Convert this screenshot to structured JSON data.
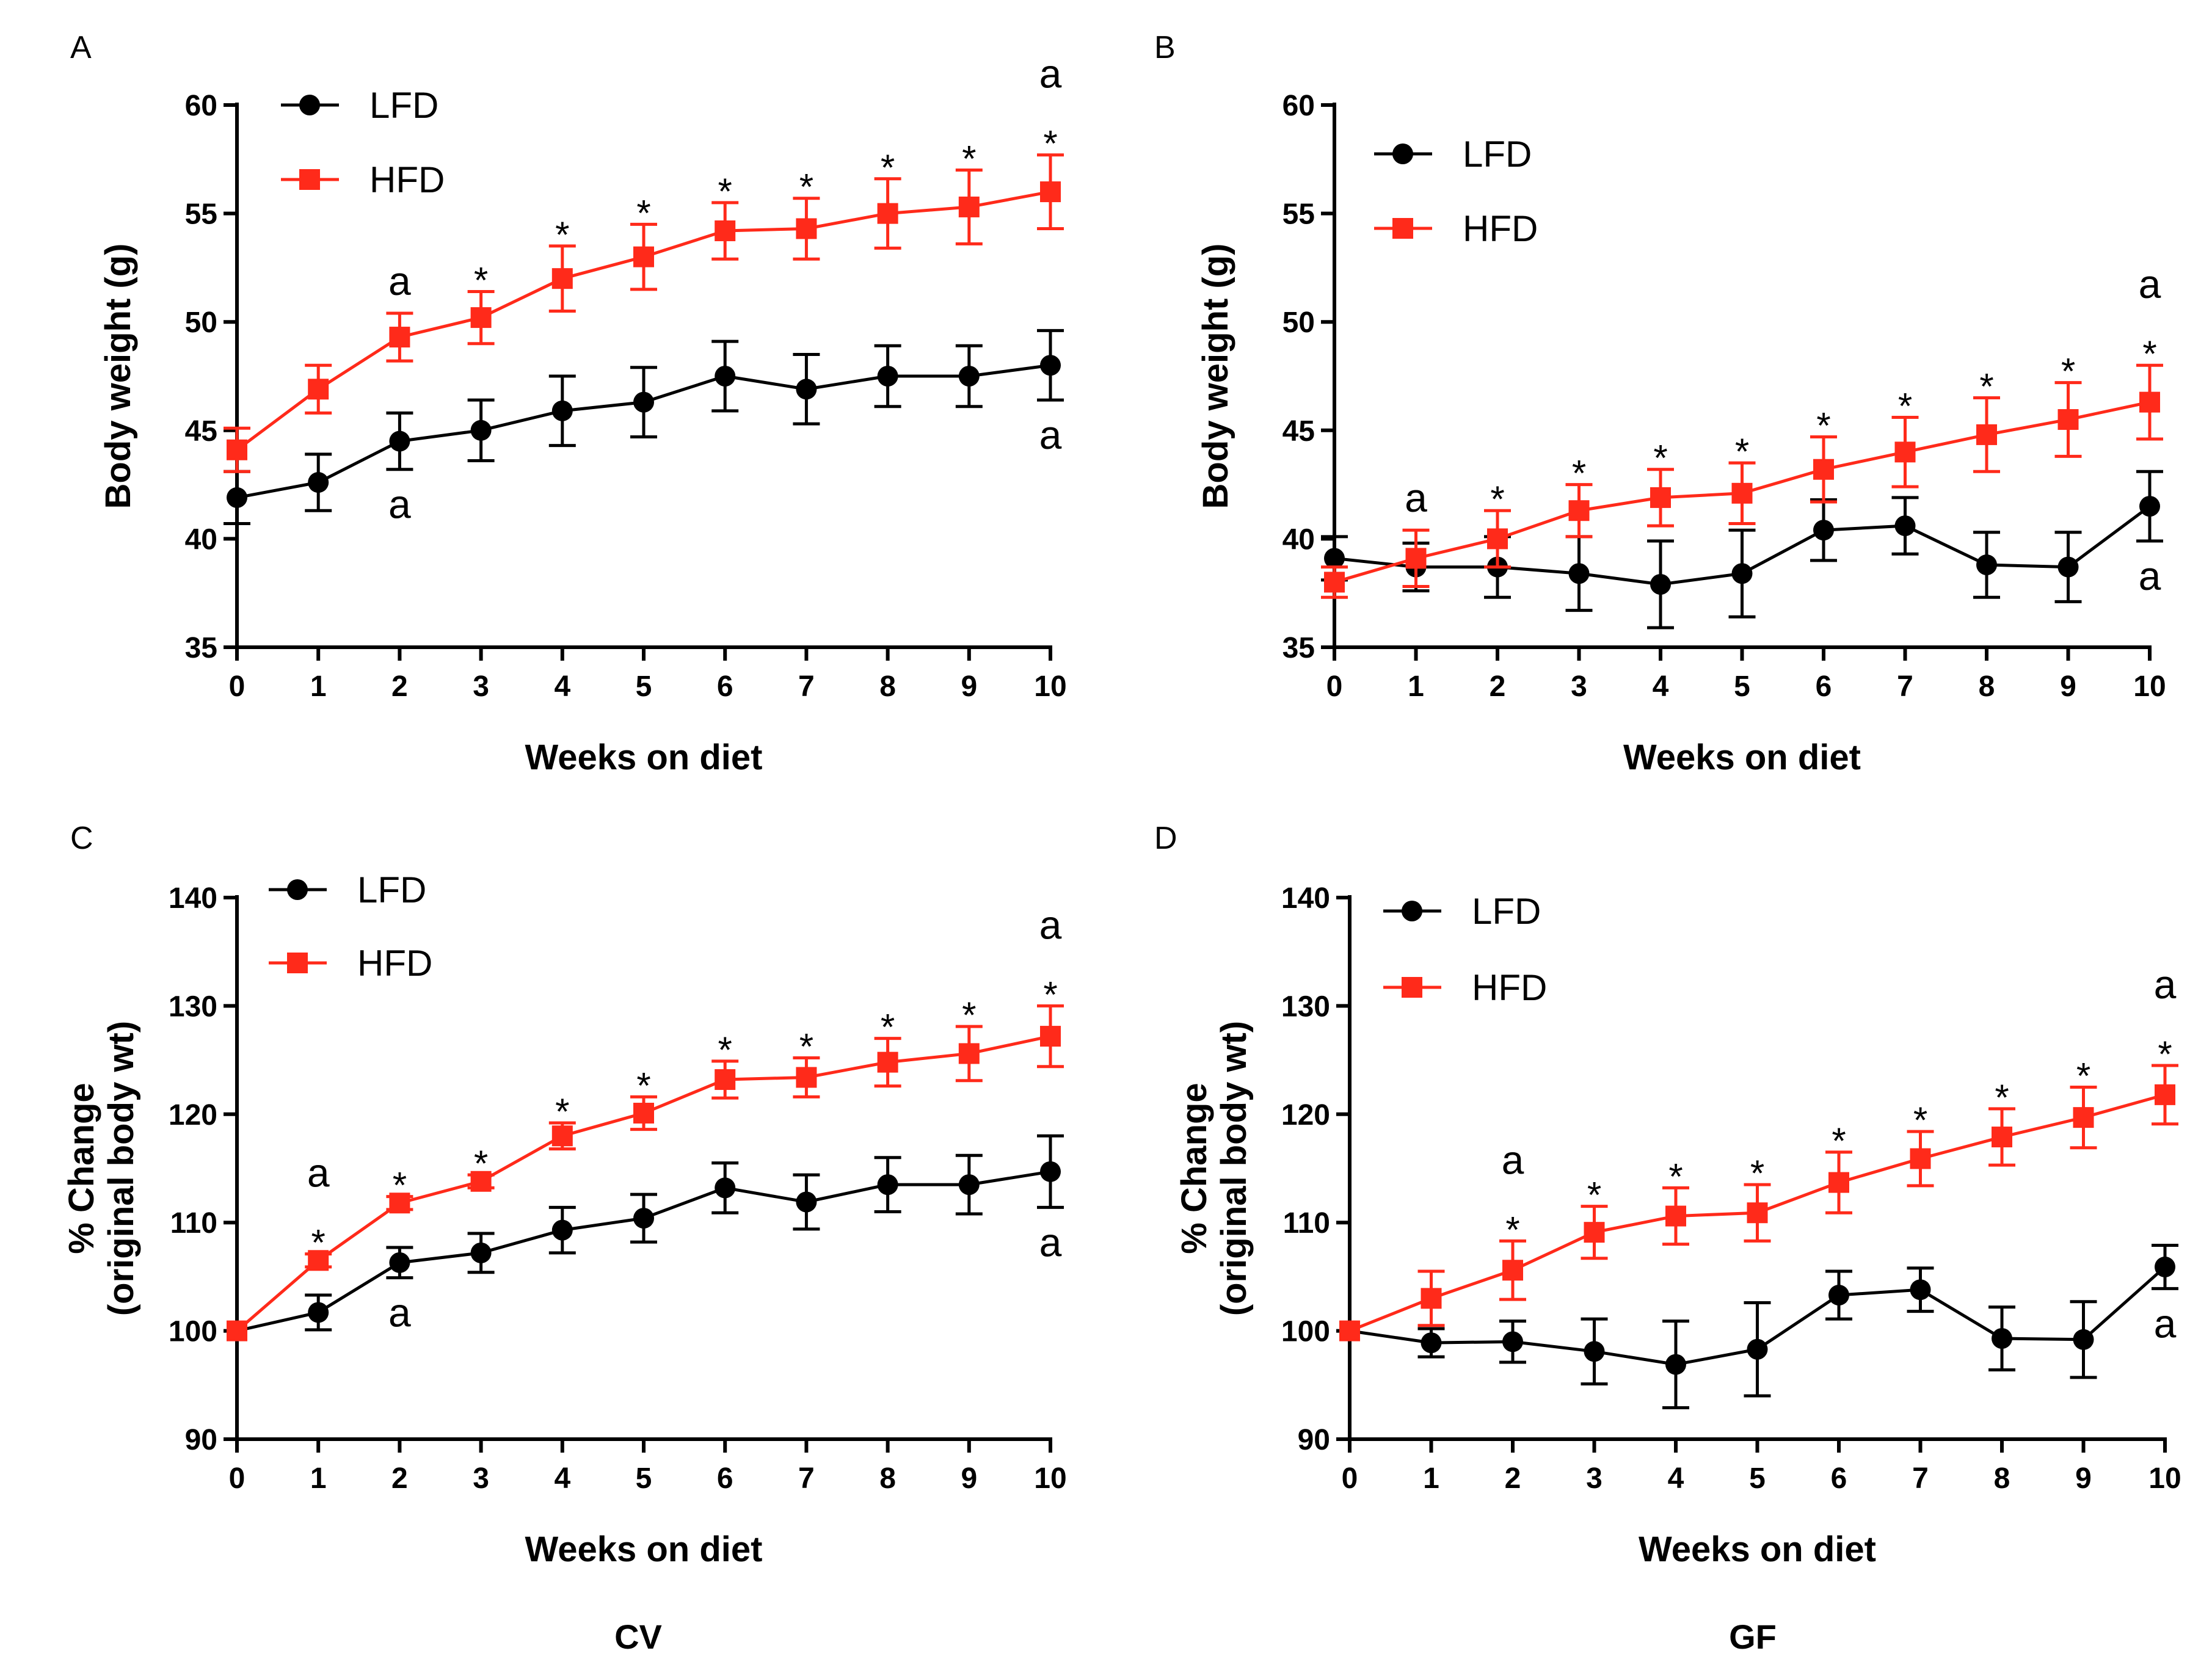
{
  "colors": {
    "LFD": "#000000",
    "HFD": "#ff2a1a"
  },
  "group_labels": [
    "CV",
    "GF"
  ],
  "chart_data": [
    {
      "panel": "A",
      "type": "line",
      "xlabel": "Weeks on diet",
      "ylabel": "Body weight (g)",
      "ylim": [
        35,
        60
      ],
      "yticks": [
        35,
        40,
        45,
        50,
        55,
        60
      ],
      "x": [
        0,
        1,
        2,
        3,
        4,
        5,
        6,
        7,
        8,
        9,
        10
      ],
      "series": [
        {
          "name": "LFD",
          "marker": "circle",
          "values": [
            41.9,
            42.6,
            44.5,
            45.0,
            45.9,
            46.3,
            47.5,
            46.9,
            47.5,
            47.5,
            48.0
          ],
          "errors": [
            1.2,
            1.3,
            1.3,
            1.4,
            1.6,
            1.6,
            1.6,
            1.6,
            1.4,
            1.4,
            1.6
          ]
        },
        {
          "name": "HFD",
          "marker": "square",
          "values": [
            44.1,
            46.9,
            49.3,
            50.2,
            52.0,
            53.0,
            54.2,
            54.3,
            55.0,
            55.3,
            56.0
          ],
          "errors": [
            1.0,
            1.1,
            1.1,
            1.2,
            1.5,
            1.5,
            1.3,
            1.4,
            1.6,
            1.7,
            1.7
          ]
        }
      ],
      "annotations": [
        {
          "x": 2,
          "text": "a",
          "pos": "above",
          "series": "HFD"
        },
        {
          "x": 2,
          "text": "a",
          "pos": "below",
          "series": "LFD"
        },
        {
          "x": 3,
          "text": "*",
          "pos": "above",
          "series": "HFD"
        },
        {
          "x": 4,
          "text": "*",
          "pos": "above",
          "series": "HFD"
        },
        {
          "x": 5,
          "text": "*",
          "pos": "above",
          "series": "HFD"
        },
        {
          "x": 6,
          "text": "*",
          "pos": "above",
          "series": "HFD"
        },
        {
          "x": 7,
          "text": "*",
          "pos": "above",
          "series": "HFD"
        },
        {
          "x": 8,
          "text": "*",
          "pos": "above",
          "series": "HFD"
        },
        {
          "x": 9,
          "text": "*",
          "pos": "above",
          "series": "HFD"
        },
        {
          "x": 10,
          "text": "*",
          "pos": "above",
          "series": "HFD"
        },
        {
          "x": 10,
          "text": "a",
          "pos": "above2",
          "series": "HFD"
        },
        {
          "x": 10,
          "text": "a",
          "pos": "below",
          "series": "LFD"
        }
      ]
    },
    {
      "panel": "B",
      "type": "line",
      "xlabel": "Weeks on diet",
      "ylabel": "Body weight (g)",
      "ylim": [
        35,
        60
      ],
      "yticks": [
        35,
        40,
        45,
        50,
        55,
        60
      ],
      "x": [
        0,
        1,
        2,
        3,
        4,
        5,
        6,
        7,
        8,
        9,
        10
      ],
      "series": [
        {
          "name": "LFD",
          "marker": "circle",
          "values": [
            39.1,
            38.7,
            38.7,
            38.4,
            37.9,
            38.4,
            40.4,
            40.6,
            38.8,
            38.7,
            41.5
          ],
          "errors": [
            1.0,
            1.1,
            1.4,
            1.7,
            2.0,
            2.0,
            1.4,
            1.3,
            1.5,
            1.6,
            1.6
          ]
        },
        {
          "name": "HFD",
          "marker": "square",
          "values": [
            38.0,
            39.1,
            40.0,
            41.3,
            41.9,
            42.1,
            43.2,
            44.0,
            44.8,
            45.5,
            46.3
          ],
          "errors": [
            0.7,
            1.3,
            1.3,
            1.2,
            1.3,
            1.4,
            1.5,
            1.6,
            1.7,
            1.7,
            1.7
          ]
        }
      ],
      "annotations": [
        {
          "x": 1,
          "text": "a",
          "pos": "above",
          "series": "HFD"
        },
        {
          "x": 2,
          "text": "*",
          "pos": "above",
          "series": "HFD"
        },
        {
          "x": 3,
          "text": "*",
          "pos": "above",
          "series": "HFD"
        },
        {
          "x": 4,
          "text": "*",
          "pos": "above",
          "series": "HFD"
        },
        {
          "x": 5,
          "text": "*",
          "pos": "above",
          "series": "HFD"
        },
        {
          "x": 6,
          "text": "*",
          "pos": "above",
          "series": "HFD"
        },
        {
          "x": 7,
          "text": "*",
          "pos": "above",
          "series": "HFD"
        },
        {
          "x": 8,
          "text": "*",
          "pos": "above",
          "series": "HFD"
        },
        {
          "x": 9,
          "text": "*",
          "pos": "above",
          "series": "HFD"
        },
        {
          "x": 10,
          "text": "*",
          "pos": "above",
          "series": "HFD"
        },
        {
          "x": 10,
          "text": "a",
          "pos": "above2",
          "series": "HFD"
        },
        {
          "x": 10,
          "text": "a",
          "pos": "below",
          "series": "LFD"
        }
      ]
    },
    {
      "panel": "C",
      "type": "line",
      "xlabel": "Weeks on diet",
      "ylabel": [
        "% Change",
        "(original body wt)"
      ],
      "ylim": [
        90,
        140
      ],
      "yticks": [
        90,
        100,
        110,
        120,
        130,
        140
      ],
      "x": [
        0,
        1,
        2,
        3,
        4,
        5,
        6,
        7,
        8,
        9,
        10
      ],
      "series": [
        {
          "name": "LFD",
          "marker": "circle",
          "values": [
            100.0,
            101.7,
            106.3,
            107.2,
            109.3,
            110.4,
            113.2,
            111.9,
            113.5,
            113.5,
            114.7
          ],
          "errors": [
            0,
            1.6,
            1.4,
            1.8,
            2.1,
            2.2,
            2.3,
            2.5,
            2.5,
            2.7,
            3.3
          ]
        },
        {
          "name": "HFD",
          "marker": "square",
          "values": [
            100.0,
            106.5,
            111.8,
            113.8,
            118.0,
            120.1,
            123.2,
            123.4,
            124.8,
            125.6,
            127.2
          ],
          "errors": [
            0,
            0.6,
            0.6,
            0.6,
            1.2,
            1.5,
            1.7,
            1.8,
            2.2,
            2.5,
            2.8
          ]
        }
      ],
      "annotations": [
        {
          "x": 1,
          "text": "*",
          "pos": "above",
          "series": "HFD"
        },
        {
          "x": 1,
          "text": "a",
          "pos": "above2",
          "series": "HFD"
        },
        {
          "x": 2,
          "text": "*",
          "pos": "above",
          "series": "HFD"
        },
        {
          "x": 2,
          "text": "a",
          "pos": "below",
          "series": "LFD"
        },
        {
          "x": 3,
          "text": "*",
          "pos": "above",
          "series": "HFD"
        },
        {
          "x": 4,
          "text": "*",
          "pos": "above",
          "series": "HFD"
        },
        {
          "x": 5,
          "text": "*",
          "pos": "above",
          "series": "HFD"
        },
        {
          "x": 6,
          "text": "*",
          "pos": "above",
          "series": "HFD"
        },
        {
          "x": 7,
          "text": "*",
          "pos": "above",
          "series": "HFD"
        },
        {
          "x": 8,
          "text": "*",
          "pos": "above",
          "series": "HFD"
        },
        {
          "x": 9,
          "text": "*",
          "pos": "above",
          "series": "HFD"
        },
        {
          "x": 10,
          "text": "*",
          "pos": "above",
          "series": "HFD"
        },
        {
          "x": 10,
          "text": "a",
          "pos": "above2",
          "series": "HFD"
        },
        {
          "x": 10,
          "text": "a",
          "pos": "below",
          "series": "LFD"
        }
      ]
    },
    {
      "panel": "D",
      "type": "line",
      "xlabel": "Weeks on diet",
      "ylabel": [
        "% Change",
        "(original body wt)"
      ],
      "ylim": [
        90,
        140
      ],
      "yticks": [
        90,
        100,
        110,
        120,
        130,
        140
      ],
      "x": [
        0,
        1,
        2,
        3,
        4,
        5,
        6,
        7,
        8,
        9,
        10
      ],
      "series": [
        {
          "name": "LFD",
          "marker": "circle",
          "values": [
            100.0,
            98.9,
            99.0,
            98.1,
            96.9,
            98.3,
            103.3,
            103.8,
            99.3,
            99.2,
            105.9
          ],
          "errors": [
            0,
            1.3,
            1.9,
            3.0,
            4.0,
            4.3,
            2.2,
            2.0,
            2.9,
            3.5,
            2.0
          ]
        },
        {
          "name": "HFD",
          "marker": "square",
          "values": [
            100.0,
            103.0,
            105.6,
            109.1,
            110.6,
            110.9,
            113.7,
            115.9,
            117.9,
            119.7,
            121.8
          ],
          "errors": [
            0,
            2.5,
            2.7,
            2.4,
            2.6,
            2.6,
            2.8,
            2.5,
            2.6,
            2.8,
            2.7
          ]
        }
      ],
      "annotations": [
        {
          "x": 2,
          "text": "*",
          "pos": "above",
          "series": "HFD"
        },
        {
          "x": 2,
          "text": "a",
          "pos": "above2",
          "series": "HFD"
        },
        {
          "x": 3,
          "text": "*",
          "pos": "above",
          "series": "HFD"
        },
        {
          "x": 4,
          "text": "*",
          "pos": "above",
          "series": "HFD"
        },
        {
          "x": 5,
          "text": "*",
          "pos": "above",
          "series": "HFD"
        },
        {
          "x": 6,
          "text": "*",
          "pos": "above",
          "series": "HFD"
        },
        {
          "x": 7,
          "text": "*",
          "pos": "above",
          "series": "HFD"
        },
        {
          "x": 8,
          "text": "*",
          "pos": "above",
          "series": "HFD"
        },
        {
          "x": 9,
          "text": "*",
          "pos": "above",
          "series": "HFD"
        },
        {
          "x": 10,
          "text": "*",
          "pos": "above",
          "series": "HFD"
        },
        {
          "x": 10,
          "text": "a",
          "pos": "above2",
          "series": "HFD"
        },
        {
          "x": 10,
          "text": "a",
          "pos": "below",
          "series": "LFD"
        }
      ]
    }
  ]
}
